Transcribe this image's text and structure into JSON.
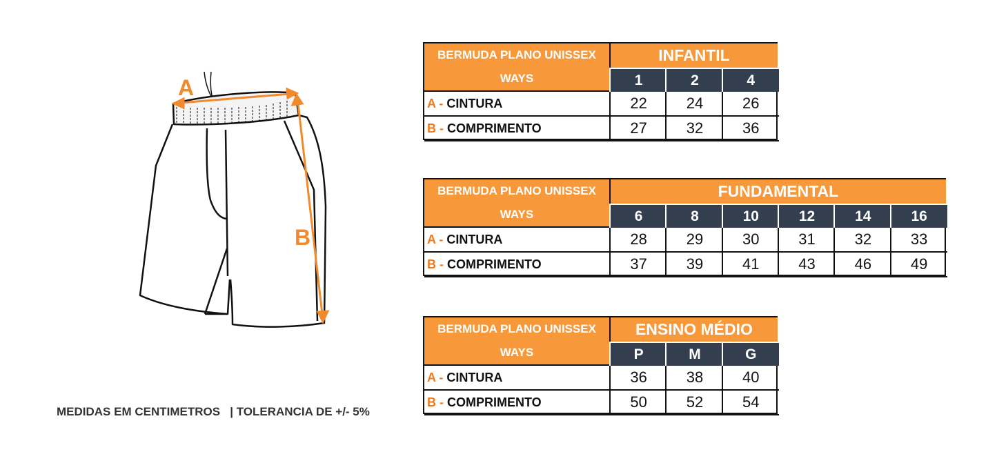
{
  "accent_color": "#F7993A",
  "header_dark_color": "#333F4F",
  "illustration": {
    "label_a": "A",
    "label_b": "B",
    "icon": "shorts-illustration"
  },
  "tables": [
    {
      "title": "BERMUDA PLANO UNISSEX WAYS",
      "group": "INFANTIL",
      "sizes": [
        "1",
        "2",
        "4"
      ],
      "rows": [
        {
          "letter": "A -",
          "name": "CINTURA",
          "values": [
            "22",
            "24",
            "26"
          ]
        },
        {
          "letter": "B -",
          "name": "COMPRIMENTO",
          "values": [
            "27",
            "32",
            "36"
          ]
        }
      ]
    },
    {
      "title": "BERMUDA PLANO UNISSEX WAYS",
      "group": "FUNDAMENTAL",
      "sizes": [
        "6",
        "8",
        "10",
        "12",
        "14",
        "16"
      ],
      "rows": [
        {
          "letter": "A -",
          "name": "CINTURA",
          "values": [
            "28",
            "29",
            "30",
            "31",
            "32",
            "33"
          ]
        },
        {
          "letter": "B -",
          "name": "COMPRIMENTO",
          "values": [
            "37",
            "39",
            "41",
            "43",
            "46",
            "49"
          ]
        }
      ]
    },
    {
      "title": "BERMUDA PLANO UNISSEX WAYS",
      "group": "ENSINO MÉDIO",
      "sizes": [
        "P",
        "M",
        "G"
      ],
      "rows": [
        {
          "letter": "A -",
          "name": "CINTURA",
          "values": [
            "36",
            "38",
            "40"
          ]
        },
        {
          "letter": "B -",
          "name": "COMPRIMENTO",
          "values": [
            "50",
            "52",
            "54"
          ]
        }
      ]
    }
  ],
  "footer": "MEDIDAS EM CENTIMETROS   | TOLERANCIA DE +/- 5%"
}
